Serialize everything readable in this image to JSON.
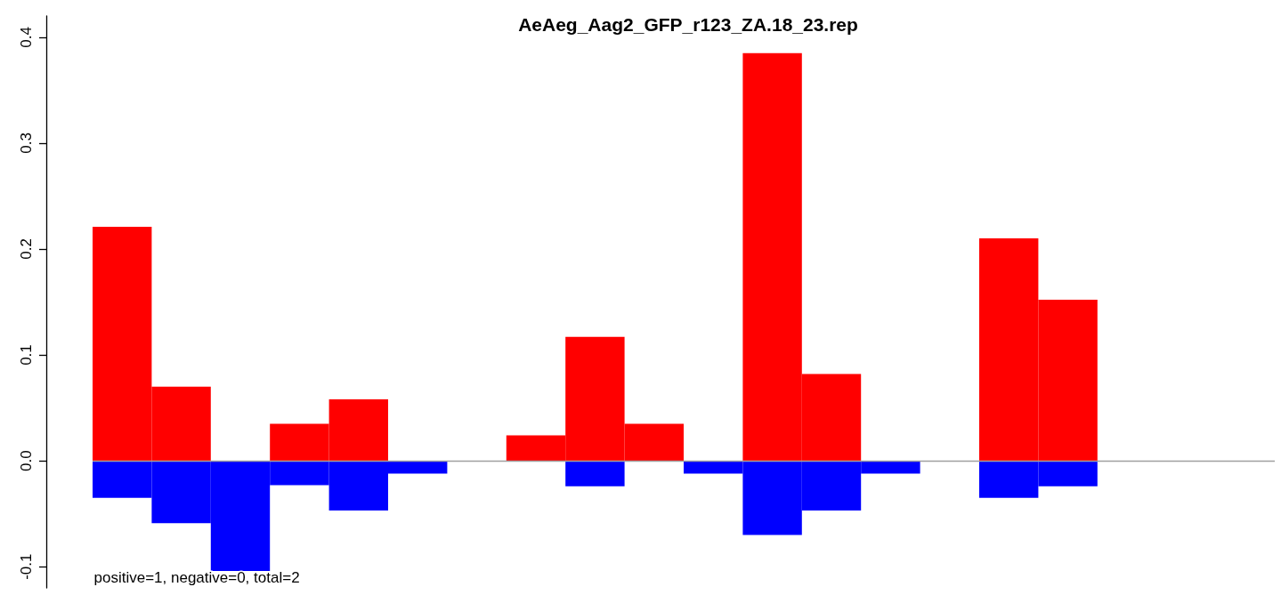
{
  "chart_data": {
    "type": "bar",
    "title": "AeAeg_Aag2_GFP_r123_ZA.18_23.rep",
    "categories": [
      null,
      null,
      null,
      null,
      null,
      null,
      null,
      null,
      null,
      null,
      null,
      null,
      null,
      null,
      null,
      null,
      null,
      null,
      null,
      null
    ],
    "series": [
      {
        "color": "#ff0000",
        "values": [
          0.221,
          0.07,
          0,
          0.035,
          0.058,
          0,
          0,
          0.024,
          0.117,
          0.035,
          0,
          0.385,
          0.082,
          0,
          0,
          0.21,
          0.152,
          0,
          0,
          0
        ]
      },
      {
        "color": "#0000ff",
        "values": [
          -0.035,
          -0.059,
          -0.104,
          -0.023,
          -0.047,
          -0.012,
          0,
          0,
          -0.024,
          0,
          -0.012,
          -0.07,
          -0.047,
          -0.012,
          0,
          -0.035,
          -0.024,
          0,
          0,
          0
        ]
      }
    ],
    "ylim": [
      -0.12,
      0.42
    ],
    "yticks": [
      {
        "value": -0.1,
        "label": "-0.1"
      },
      {
        "value": 0,
        "label": "0.0"
      },
      0.1,
      0.2,
      0.3,
      0.4
    ],
    "ref_lines": [
      {
        "axis": "y",
        "value": 0,
        "color": "#a0a0a0"
      }
    ],
    "annotations": [
      "positive=1, negative=0, total=2"
    ],
    "grid": false
  }
}
